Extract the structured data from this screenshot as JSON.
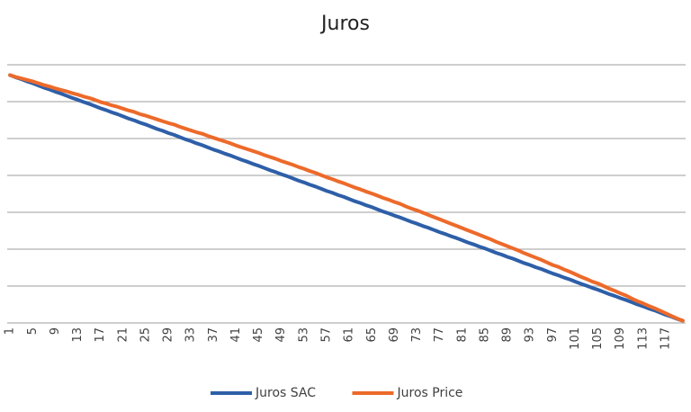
{
  "chart_data": {
    "type": "line",
    "title": "Juros",
    "categories": [
      1,
      null,
      null,
      null,
      5,
      null,
      null,
      null,
      9,
      null,
      null,
      null,
      13,
      null,
      null,
      null,
      17,
      null,
      null,
      null,
      21,
      null,
      null,
      null,
      25,
      null,
      null,
      null,
      29,
      null,
      null,
      null,
      33,
      null,
      null,
      null,
      37,
      null,
      null,
      null,
      41,
      null,
      null,
      null,
      45,
      null,
      null,
      null,
      49,
      null,
      null,
      null,
      53,
      null,
      null,
      null,
      57,
      null,
      null,
      null,
      61,
      null,
      null,
      null,
      65,
      null,
      null,
      null,
      69,
      null,
      null,
      null,
      73,
      null,
      null,
      null,
      77,
      null,
      null,
      null,
      81,
      null,
      null,
      null,
      85,
      null,
      null,
      null,
      89,
      null,
      null,
      null,
      93,
      null,
      null,
      null,
      97,
      null,
      null,
      null,
      101,
      null,
      null,
      null,
      105,
      null,
      null,
      null,
      109,
      null,
      null,
      null,
      113,
      null,
      null,
      null,
      117,
      null,
      null,
      null
    ],
    "series": [
      {
        "name": "Juros SAC",
        "color": "#2e5fa8",
        "values": [
          6.72,
          6.66,
          6.61,
          6.55,
          6.5,
          6.44,
          6.38,
          6.33,
          6.27,
          6.22,
          6.16,
          6.1,
          6.05,
          5.99,
          5.94,
          5.88,
          5.82,
          5.77,
          5.71,
          5.66,
          5.6,
          5.54,
          5.49,
          5.43,
          5.38,
          5.32,
          5.26,
          5.21,
          5.15,
          5.1,
          5.04,
          4.98,
          4.93,
          4.87,
          4.82,
          4.76,
          4.7,
          4.65,
          4.59,
          4.54,
          4.48,
          4.42,
          4.37,
          4.31,
          4.26,
          4.2,
          4.14,
          4.09,
          4.03,
          3.98,
          3.92,
          3.86,
          3.81,
          3.75,
          3.7,
          3.64,
          3.58,
          3.53,
          3.47,
          3.42,
          3.36,
          3.3,
          3.25,
          3.19,
          3.14,
          3.08,
          3.02,
          2.97,
          2.91,
          2.86,
          2.8,
          2.74,
          2.69,
          2.63,
          2.58,
          2.52,
          2.46,
          2.41,
          2.35,
          2.3,
          2.24,
          2.18,
          2.13,
          2.07,
          2.02,
          1.96,
          1.9,
          1.85,
          1.79,
          1.74,
          1.68,
          1.62,
          1.57,
          1.51,
          1.46,
          1.4,
          1.34,
          1.29,
          1.23,
          1.18,
          1.12,
          1.06,
          1.01,
          0.95,
          0.9,
          0.84,
          0.78,
          0.73,
          0.67,
          0.62,
          0.56,
          0.5,
          0.45,
          0.39,
          0.34,
          0.28,
          0.22,
          0.17,
          0.11,
          0.06
        ]
      },
      {
        "name": "Juros Price",
        "color": "#ed6a2a",
        "values": [
          6.72,
          6.67,
          6.63,
          6.59,
          6.55,
          6.5,
          6.45,
          6.41,
          6.36,
          6.32,
          6.28,
          6.23,
          6.19,
          6.14,
          6.1,
          6.05,
          5.99,
          5.95,
          5.9,
          5.86,
          5.81,
          5.76,
          5.72,
          5.66,
          5.62,
          5.57,
          5.52,
          5.47,
          5.42,
          5.38,
          5.32,
          5.27,
          5.22,
          5.17,
          5.13,
          5.07,
          5.02,
          4.97,
          4.92,
          4.87,
          4.81,
          4.76,
          4.71,
          4.66,
          4.61,
          4.55,
          4.5,
          4.45,
          4.39,
          4.34,
          4.29,
          4.23,
          4.18,
          4.12,
          4.07,
          4.01,
          3.95,
          3.9,
          3.84,
          3.79,
          3.73,
          3.67,
          3.62,
          3.56,
          3.51,
          3.45,
          3.39,
          3.34,
          3.28,
          3.23,
          3.16,
          3.1,
          3.05,
          2.99,
          2.93,
          2.87,
          2.81,
          2.75,
          2.69,
          2.63,
          2.57,
          2.51,
          2.45,
          2.39,
          2.33,
          2.27,
          2.2,
          2.14,
          2.08,
          2.02,
          1.96,
          1.89,
          1.83,
          1.77,
          1.71,
          1.64,
          1.57,
          1.52,
          1.45,
          1.39,
          1.32,
          1.25,
          1.19,
          1.12,
          1.07,
          1.0,
          0.93,
          0.87,
          0.8,
          0.74,
          0.66,
          0.59,
          0.53,
          0.46,
          0.4,
          0.33,
          0.26,
          0.19,
          0.12,
          0.06
        ]
      }
    ],
    "ylim": [
      0,
      7
    ],
    "yticks": [
      0,
      1,
      2,
      3,
      4,
      5,
      6,
      7
    ],
    "ytick_labels": false,
    "grid": true,
    "legend": "bottom"
  }
}
